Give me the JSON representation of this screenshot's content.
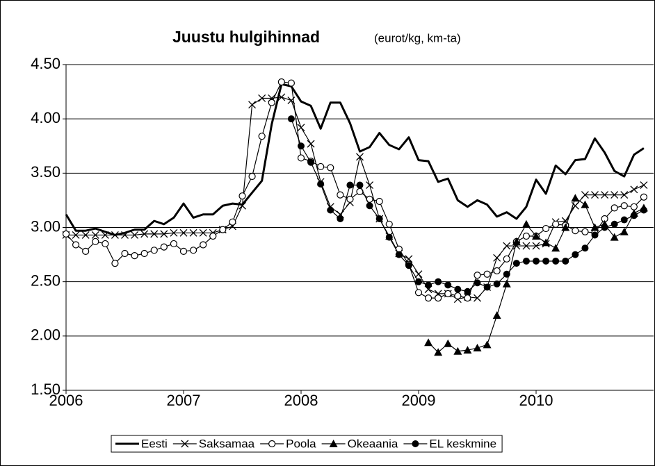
{
  "chart_data": {
    "type": "line",
    "title": "Juustu hulgihinnad",
    "subtitle": "(eurot/kg, km-ta)",
    "categories": [
      "2006",
      null,
      null,
      null,
      null,
      null,
      null,
      null,
      null,
      null,
      null,
      null,
      "2007",
      null,
      null,
      null,
      null,
      null,
      null,
      null,
      null,
      null,
      null,
      null,
      "2008",
      null,
      null,
      null,
      null,
      null,
      null,
      null,
      null,
      null,
      null,
      null,
      "2009",
      null,
      null,
      null,
      null,
      null,
      null,
      null,
      null,
      null,
      null,
      null,
      "2010",
      null,
      null,
      null,
      null,
      null,
      null,
      null,
      null,
      null,
      null,
      null
    ],
    "ylim": [
      1.5,
      4.5
    ],
    "yticks": [
      {
        "value": 1.5,
        "label": "1.50"
      },
      {
        "value": 2,
        "label": "2.00"
      },
      {
        "value": 2.5,
        "label": "2.50"
      },
      {
        "value": 3,
        "label": "3.00"
      },
      {
        "value": 3.5,
        "label": "3.50"
      },
      {
        "value": 4,
        "label": "4.00"
      },
      {
        "value": 4.5,
        "label": "4.50"
      }
    ],
    "grid": true,
    "legend": "bottom",
    "series": [
      {
        "name": "Eesti",
        "color": "#000000",
        "marker": "none",
        "line_width": 3,
        "values": [
          3.12,
          2.97,
          2.97,
          2.99,
          2.96,
          2.93,
          2.95,
          2.98,
          2.98,
          3.06,
          3.03,
          3.09,
          3.22,
          3.09,
          3.12,
          3.12,
          3.2,
          3.22,
          3.21,
          3.32,
          3.43,
          3.95,
          4.32,
          4.3,
          4.16,
          4.12,
          3.91,
          4.15,
          4.15,
          3.96,
          3.7,
          3.74,
          3.87,
          3.76,
          3.72,
          3.83,
          3.62,
          3.61,
          3.42,
          3.45,
          3.25,
          3.19,
          3.25,
          3.21,
          3.1,
          3.14,
          3.08,
          3.19,
          3.44,
          3.31,
          3.57,
          3.49,
          3.62,
          3.63,
          3.82,
          3.69,
          3.52,
          3.47,
          3.67,
          3.73
        ]
      },
      {
        "name": "Saksamaa",
        "color": "#000000",
        "marker": "x",
        "line_width": 1.2,
        "values": [
          2.93,
          2.93,
          2.93,
          2.93,
          2.93,
          2.93,
          2.93,
          2.93,
          2.94,
          2.94,
          2.94,
          2.95,
          2.95,
          2.95,
          2.95,
          2.95,
          2.98,
          3.01,
          3.2,
          4.13,
          4.19,
          4.19,
          4.2,
          4.17,
          3.92,
          3.77,
          3.42,
          3.19,
          3.12,
          3.23,
          3.65,
          3.39,
          3.08,
          2.92,
          2.76,
          2.71,
          2.57,
          2.43,
          2.39,
          2.39,
          2.34,
          2.36,
          2.35,
          2.45,
          2.72,
          2.83,
          2.83,
          2.83,
          2.83,
          2.85,
          3.05,
          3.06,
          3.2,
          3.3,
          3.3,
          3.3,
          3.3,
          3.3,
          3.35,
          3.39
        ]
      },
      {
        "name": "Poola",
        "color": "#000000",
        "marker": "circle-open",
        "line_width": 1.2,
        "values": [
          2.94,
          2.84,
          2.78,
          2.87,
          2.85,
          2.67,
          2.76,
          2.74,
          2.76,
          2.79,
          2.82,
          2.85,
          2.78,
          2.79,
          2.84,
          2.92,
          2.98,
          3.05,
          3.29,
          3.47,
          3.84,
          4.15,
          4.34,
          4.33,
          3.64,
          3.61,
          3.56,
          3.55,
          3.3,
          3.26,
          3.33,
          3.26,
          3.24,
          3.03,
          2.8,
          2.66,
          2.4,
          2.35,
          2.35,
          2.39,
          2.37,
          2.35,
          2.56,
          2.57,
          2.6,
          2.71,
          2.87,
          2.92,
          2.92,
          2.99,
          3.03,
          3.02,
          2.97,
          2.96,
          2.95,
          3.08,
          3.18,
          3.2,
          3.19,
          3.28
        ]
      },
      {
        "name": "Okeaania",
        "color": "#000000",
        "marker": "triangle",
        "line_width": 1.2,
        "values": [
          null,
          null,
          null,
          null,
          null,
          null,
          null,
          null,
          null,
          null,
          null,
          null,
          null,
          null,
          null,
          null,
          null,
          null,
          null,
          null,
          null,
          null,
          null,
          null,
          null,
          null,
          null,
          null,
          null,
          null,
          null,
          null,
          null,
          null,
          null,
          null,
          null,
          1.94,
          1.85,
          1.93,
          1.86,
          1.87,
          1.89,
          1.92,
          2.19,
          2.48,
          2.87,
          3.03,
          2.92,
          2.86,
          2.81,
          3.0,
          3.27,
          3.21,
          3.0,
          3.03,
          2.91,
          2.96,
          3.13,
          3.18
        ]
      },
      {
        "name": "EL keskmine",
        "color": "#000000",
        "marker": "circle",
        "line_width": 1.2,
        "values": [
          null,
          null,
          null,
          null,
          null,
          null,
          null,
          null,
          null,
          null,
          null,
          null,
          null,
          null,
          null,
          null,
          null,
          null,
          null,
          null,
          null,
          null,
          null,
          4.0,
          3.75,
          3.6,
          3.4,
          3.16,
          3.08,
          3.39,
          3.39,
          3.2,
          3.08,
          2.91,
          2.75,
          2.65,
          2.5,
          2.47,
          2.5,
          2.47,
          2.43,
          2.41,
          2.49,
          2.45,
          2.48,
          2.57,
          2.67,
          2.69,
          2.69,
          2.69,
          2.69,
          2.69,
          2.75,
          2.81,
          2.93,
          3.0,
          3.03,
          3.07,
          3.11,
          3.16
        ]
      }
    ]
  }
}
